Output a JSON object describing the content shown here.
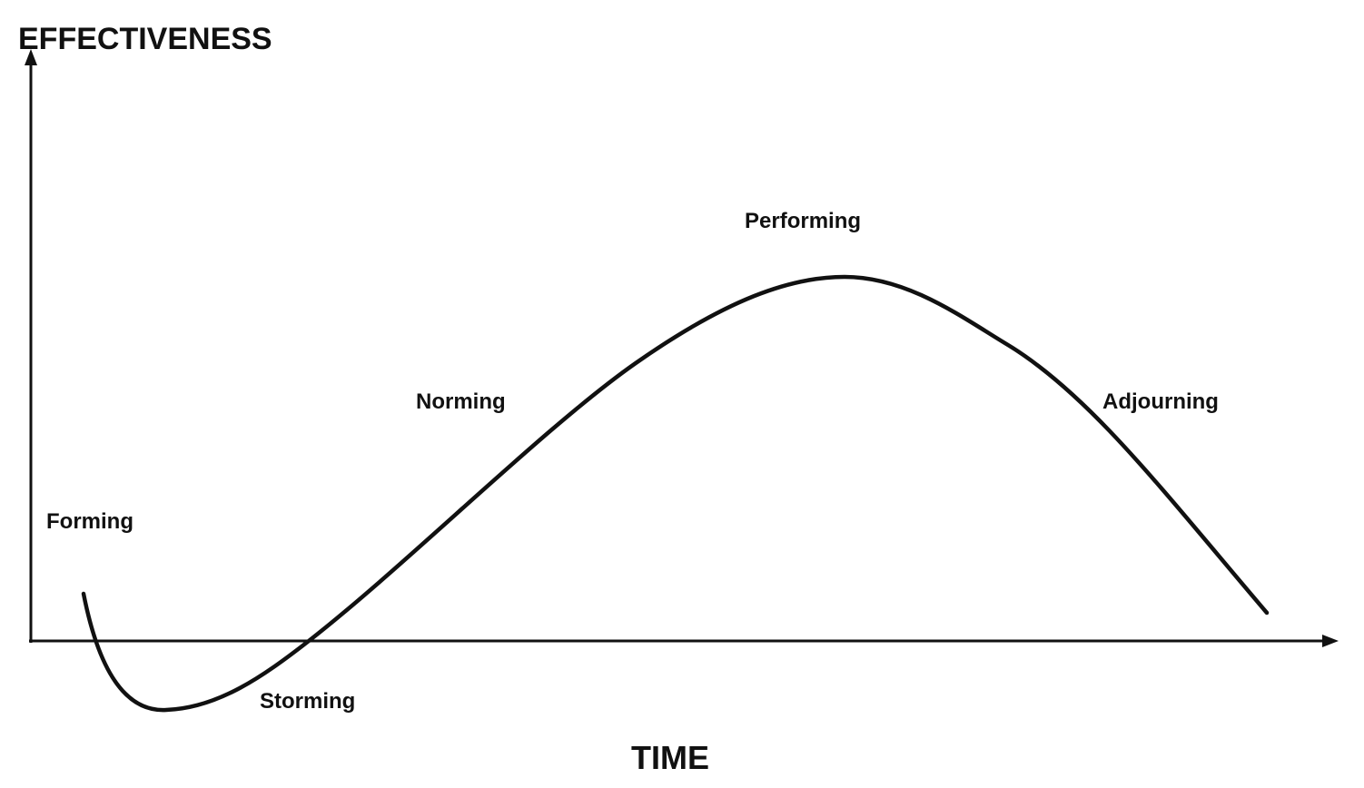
{
  "y_axis_label": "EFFECTIVENESS",
  "x_axis_label": "TIME",
  "stages": [
    {
      "label": "Forming"
    },
    {
      "label": "Storming"
    },
    {
      "label": "Norming"
    },
    {
      "label": "Performing"
    },
    {
      "label": "Adjourning"
    }
  ]
}
